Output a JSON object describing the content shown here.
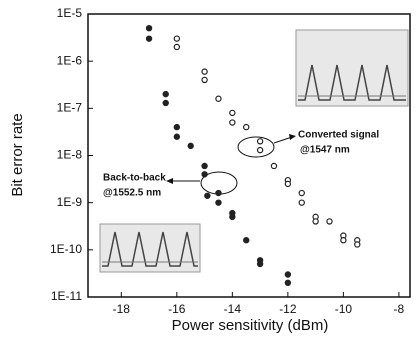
{
  "chart_data": {
    "type": "scatter",
    "x_label": "Power sensitivity (dBm)",
    "y_label": "Bit error rate",
    "log_y": true,
    "xlim": [
      -19.2,
      -7.6
    ],
    "ylim": [
      1e-11,
      1e-05
    ],
    "xticks": [
      -18,
      -16,
      -14,
      -12,
      -10,
      -8
    ],
    "yticks": [
      {
        "value": 1e-05,
        "label": "1E-5"
      },
      {
        "value": 1e-06,
        "label": "1E-6"
      },
      {
        "value": 1e-07,
        "label": "1E-7"
      },
      {
        "value": 1e-08,
        "label": "1E-8"
      },
      {
        "value": 1e-09,
        "label": "1E-9"
      },
      {
        "value": 1e-10,
        "label": "1E-10"
      },
      {
        "value": 1e-11,
        "label": "1E-11"
      }
    ],
    "annotations": [
      {
        "lines": [
          "Back-to-back",
          "@1552.5 nm"
        ]
      },
      {
        "lines": [
          "Converted signal",
          "@1547 nm"
        ]
      }
    ],
    "series": [
      {
        "color": "#222222",
        "filled": true,
        "x": [
          -17,
          -17,
          -16.4,
          -16.4,
          -16,
          -16,
          -15.5,
          -15,
          -15,
          -14.9,
          -14.5,
          -14.5,
          -14,
          -14,
          -13.5,
          -13,
          -13,
          -12,
          -12
        ],
        "values": [
          5e-06,
          3e-06,
          2e-07,
          1.3e-07,
          4e-08,
          2.5e-08,
          1.6e-08,
          6e-09,
          4e-09,
          1.4e-09,
          1.6e-09,
          1e-09,
          6e-10,
          5e-10,
          1.6e-10,
          6e-11,
          5e-11,
          3e-11,
          2e-11
        ]
      },
      {
        "color": "#222222",
        "filled": false,
        "x": [
          -16,
          -16,
          -15,
          -15,
          -14.5,
          -14,
          -14,
          -13.5,
          -13,
          -13,
          -12.5,
          -12,
          -12,
          -11.5,
          -11.5,
          -11,
          -11,
          -10.5,
          -10,
          -10,
          -9.5,
          -9.5
        ],
        "values": [
          3e-06,
          2e-06,
          6e-07,
          4e-07,
          1.6e-07,
          8e-08,
          5e-08,
          4e-08,
          2e-08,
          1.3e-08,
          6e-09,
          3e-09,
          2.5e-09,
          1.6e-09,
          1e-09,
          5e-10,
          4e-10,
          4e-10,
          2e-10,
          1.6e-10,
          1.6e-10,
          1.3e-10
        ]
      }
    ]
  }
}
